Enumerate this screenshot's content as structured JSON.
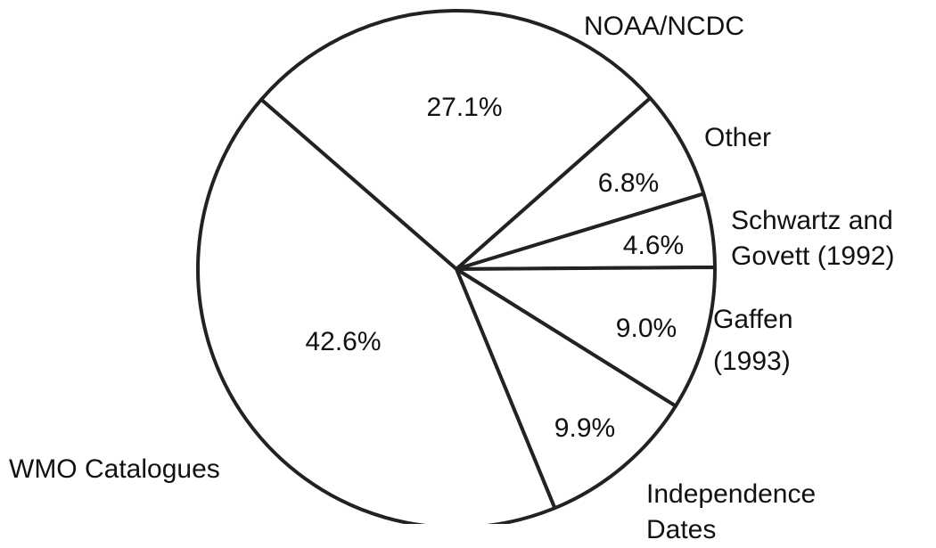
{
  "chart_data": {
    "type": "pie",
    "categories": [
      "NOAA/NCDC",
      "Other",
      "Schwartz and Govett (1992)",
      "Gaffen (1993)",
      "Independence Dates",
      "WMO Catalogues"
    ],
    "values": [
      27.1,
      6.8,
      4.6,
      9.0,
      9.9,
      42.6
    ],
    "value_labels": [
      "27.1%",
      "6.8%",
      "4.6%",
      "9.0%",
      "9.9%",
      "42.6%"
    ],
    "color": "#ffffff"
  }
}
